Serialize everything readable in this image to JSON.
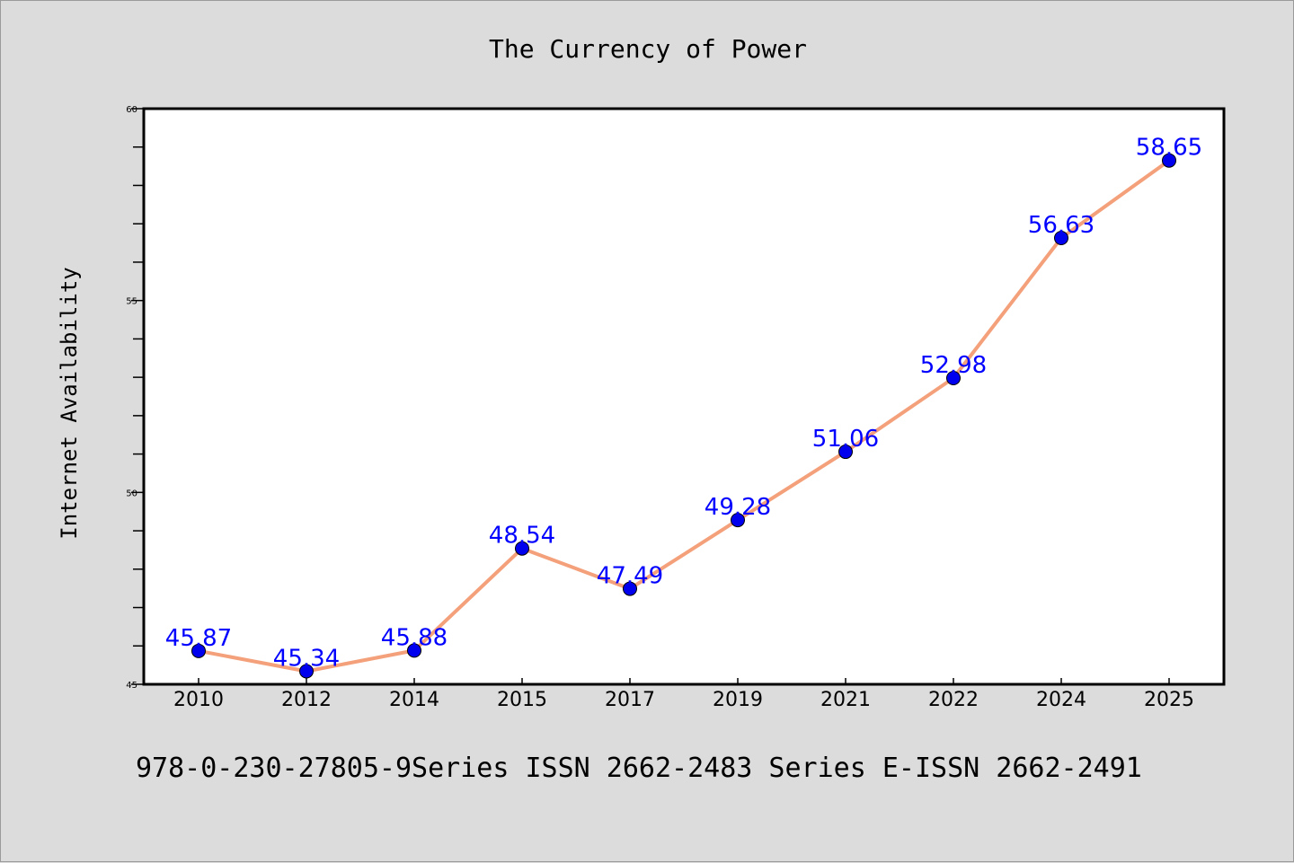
{
  "chart_data": {
    "type": "line",
    "title": "The Currency of Power",
    "ylabel": "Internet Availability",
    "xlabel": "",
    "categories": [
      "2010",
      "2012",
      "2014",
      "2015",
      "2017",
      "2019",
      "2021",
      "2022",
      "2024",
      "2025"
    ],
    "series": [
      {
        "values": [
          45.87,
          45.34,
          45.88,
          48.54,
          47.49,
          49.28,
          51.06,
          52.98,
          56.63,
          58.65
        ],
        "labels": [
          "45.87",
          "45.34",
          "45.88",
          "48.54",
          "47.49",
          "49.28",
          "51.06",
          "52.98",
          "56.63",
          "58.65"
        ]
      }
    ],
    "ylim": [
      45,
      60
    ],
    "yticks": [
      "45",
      "50",
      "55",
      "60"
    ],
    "grid": false,
    "legend": "none",
    "colors": {
      "line": "#f4a07a",
      "marker": "#0000ee",
      "label": "#0000ff",
      "frame": "#000000",
      "plot_bg": "#ffffff",
      "page_bg": "#dcdcdc"
    }
  },
  "footer": {
    "text": "978-0-230-27805-9Series ISSN 2662-2483 Series E-ISSN 2662-2491"
  }
}
